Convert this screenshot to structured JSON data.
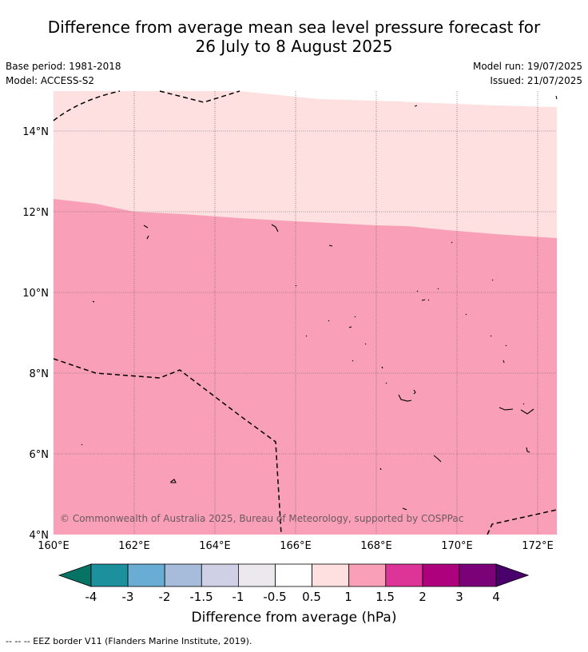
{
  "header": {
    "title_line1": "Difference from average mean sea level pressure forecast for",
    "title_line2": "26 July to 8 August 2025",
    "base_period": "Base period: 1981-2018",
    "model": "Model: ACCESS-S2",
    "model_run": "Model run: 19/07/2025",
    "issued": "Issued: 21/07/2025"
  },
  "map": {
    "lon_labels": [
      "160°E",
      "162°E",
      "164°E",
      "166°E",
      "168°E",
      "170°E",
      "172°E"
    ],
    "lat_labels": [
      "14°N",
      "12°N",
      "10°N",
      "8°N",
      "6°N",
      "4°N"
    ],
    "copyright": "© Commonwealth of Australia 2025, Bureau of Meteorology, supported by COSPPac",
    "fill_colors": {
      "band_0_5_to_1": "#fde0df",
      "band_1_to_1_5": "#f99fb7"
    }
  },
  "legend": {
    "title": "Difference from average (hPa)",
    "tick_labels": [
      "-4",
      "-3",
      "-2",
      "-1.5",
      "-1",
      "-0.5",
      "0.5",
      "1",
      "1.5",
      "2",
      "3",
      "4"
    ],
    "colors": [
      "#067365",
      "#1c909c",
      "#69add5",
      "#a7bcdb",
      "#cfd0e6",
      "#ebe9ee",
      "#ffffff",
      "#fde0df",
      "#f99fb7",
      "#dd3497",
      "#ad017e",
      "#7a0177",
      "#4a006b"
    ]
  },
  "footer": {
    "eez_legend": "--  --  -- EEZ border V11 (Flanders Marine Institute, 2019)."
  }
}
